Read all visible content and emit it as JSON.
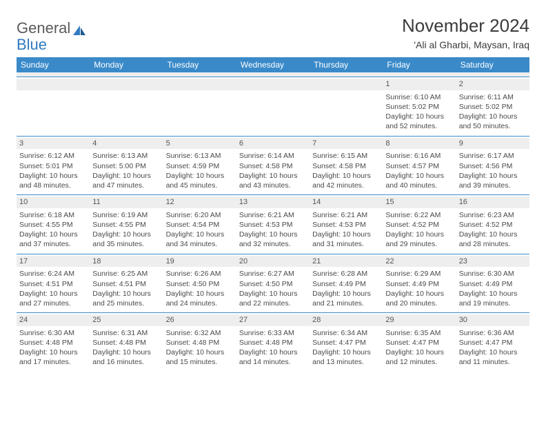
{
  "logo": {
    "word1": "General",
    "word2": "Blue"
  },
  "header": {
    "month_title": "November 2024",
    "location": "'Ali al Gharbi, Maysan, Iraq"
  },
  "colors": {
    "header_bg": "#3a8ac9",
    "header_text": "#ffffff",
    "band_bg": "#eeeeee",
    "rule": "#3a8ac9",
    "logo_gray": "#5a5a5a",
    "logo_blue": "#2f7ac0",
    "text": "#4a4a4a"
  },
  "day_names": [
    "Sunday",
    "Monday",
    "Tuesday",
    "Wednesday",
    "Thursday",
    "Friday",
    "Saturday"
  ],
  "weeks": [
    [
      {
        "n": "",
        "lines": []
      },
      {
        "n": "",
        "lines": []
      },
      {
        "n": "",
        "lines": []
      },
      {
        "n": "",
        "lines": []
      },
      {
        "n": "",
        "lines": []
      },
      {
        "n": "1",
        "lines": [
          "Sunrise: 6:10 AM",
          "Sunset: 5:02 PM",
          "Daylight: 10 hours",
          "and 52 minutes."
        ]
      },
      {
        "n": "2",
        "lines": [
          "Sunrise: 6:11 AM",
          "Sunset: 5:02 PM",
          "Daylight: 10 hours",
          "and 50 minutes."
        ]
      }
    ],
    [
      {
        "n": "3",
        "lines": [
          "Sunrise: 6:12 AM",
          "Sunset: 5:01 PM",
          "Daylight: 10 hours",
          "and 48 minutes."
        ]
      },
      {
        "n": "4",
        "lines": [
          "Sunrise: 6:13 AM",
          "Sunset: 5:00 PM",
          "Daylight: 10 hours",
          "and 47 minutes."
        ]
      },
      {
        "n": "5",
        "lines": [
          "Sunrise: 6:13 AM",
          "Sunset: 4:59 PM",
          "Daylight: 10 hours",
          "and 45 minutes."
        ]
      },
      {
        "n": "6",
        "lines": [
          "Sunrise: 6:14 AM",
          "Sunset: 4:58 PM",
          "Daylight: 10 hours",
          "and 43 minutes."
        ]
      },
      {
        "n": "7",
        "lines": [
          "Sunrise: 6:15 AM",
          "Sunset: 4:58 PM",
          "Daylight: 10 hours",
          "and 42 minutes."
        ]
      },
      {
        "n": "8",
        "lines": [
          "Sunrise: 6:16 AM",
          "Sunset: 4:57 PM",
          "Daylight: 10 hours",
          "and 40 minutes."
        ]
      },
      {
        "n": "9",
        "lines": [
          "Sunrise: 6:17 AM",
          "Sunset: 4:56 PM",
          "Daylight: 10 hours",
          "and 39 minutes."
        ]
      }
    ],
    [
      {
        "n": "10",
        "lines": [
          "Sunrise: 6:18 AM",
          "Sunset: 4:55 PM",
          "Daylight: 10 hours",
          "and 37 minutes."
        ]
      },
      {
        "n": "11",
        "lines": [
          "Sunrise: 6:19 AM",
          "Sunset: 4:55 PM",
          "Daylight: 10 hours",
          "and 35 minutes."
        ]
      },
      {
        "n": "12",
        "lines": [
          "Sunrise: 6:20 AM",
          "Sunset: 4:54 PM",
          "Daylight: 10 hours",
          "and 34 minutes."
        ]
      },
      {
        "n": "13",
        "lines": [
          "Sunrise: 6:21 AM",
          "Sunset: 4:53 PM",
          "Daylight: 10 hours",
          "and 32 minutes."
        ]
      },
      {
        "n": "14",
        "lines": [
          "Sunrise: 6:21 AM",
          "Sunset: 4:53 PM",
          "Daylight: 10 hours",
          "and 31 minutes."
        ]
      },
      {
        "n": "15",
        "lines": [
          "Sunrise: 6:22 AM",
          "Sunset: 4:52 PM",
          "Daylight: 10 hours",
          "and 29 minutes."
        ]
      },
      {
        "n": "16",
        "lines": [
          "Sunrise: 6:23 AM",
          "Sunset: 4:52 PM",
          "Daylight: 10 hours",
          "and 28 minutes."
        ]
      }
    ],
    [
      {
        "n": "17",
        "lines": [
          "Sunrise: 6:24 AM",
          "Sunset: 4:51 PM",
          "Daylight: 10 hours",
          "and 27 minutes."
        ]
      },
      {
        "n": "18",
        "lines": [
          "Sunrise: 6:25 AM",
          "Sunset: 4:51 PM",
          "Daylight: 10 hours",
          "and 25 minutes."
        ]
      },
      {
        "n": "19",
        "lines": [
          "Sunrise: 6:26 AM",
          "Sunset: 4:50 PM",
          "Daylight: 10 hours",
          "and 24 minutes."
        ]
      },
      {
        "n": "20",
        "lines": [
          "Sunrise: 6:27 AM",
          "Sunset: 4:50 PM",
          "Daylight: 10 hours",
          "and 22 minutes."
        ]
      },
      {
        "n": "21",
        "lines": [
          "Sunrise: 6:28 AM",
          "Sunset: 4:49 PM",
          "Daylight: 10 hours",
          "and 21 minutes."
        ]
      },
      {
        "n": "22",
        "lines": [
          "Sunrise: 6:29 AM",
          "Sunset: 4:49 PM",
          "Daylight: 10 hours",
          "and 20 minutes."
        ]
      },
      {
        "n": "23",
        "lines": [
          "Sunrise: 6:30 AM",
          "Sunset: 4:49 PM",
          "Daylight: 10 hours",
          "and 19 minutes."
        ]
      }
    ],
    [
      {
        "n": "24",
        "lines": [
          "Sunrise: 6:30 AM",
          "Sunset: 4:48 PM",
          "Daylight: 10 hours",
          "and 17 minutes."
        ]
      },
      {
        "n": "25",
        "lines": [
          "Sunrise: 6:31 AM",
          "Sunset: 4:48 PM",
          "Daylight: 10 hours",
          "and 16 minutes."
        ]
      },
      {
        "n": "26",
        "lines": [
          "Sunrise: 6:32 AM",
          "Sunset: 4:48 PM",
          "Daylight: 10 hours",
          "and 15 minutes."
        ]
      },
      {
        "n": "27",
        "lines": [
          "Sunrise: 6:33 AM",
          "Sunset: 4:48 PM",
          "Daylight: 10 hours",
          "and 14 minutes."
        ]
      },
      {
        "n": "28",
        "lines": [
          "Sunrise: 6:34 AM",
          "Sunset: 4:47 PM",
          "Daylight: 10 hours",
          "and 13 minutes."
        ]
      },
      {
        "n": "29",
        "lines": [
          "Sunrise: 6:35 AM",
          "Sunset: 4:47 PM",
          "Daylight: 10 hours",
          "and 12 minutes."
        ]
      },
      {
        "n": "30",
        "lines": [
          "Sunrise: 6:36 AM",
          "Sunset: 4:47 PM",
          "Daylight: 10 hours",
          "and 11 minutes."
        ]
      }
    ]
  ]
}
